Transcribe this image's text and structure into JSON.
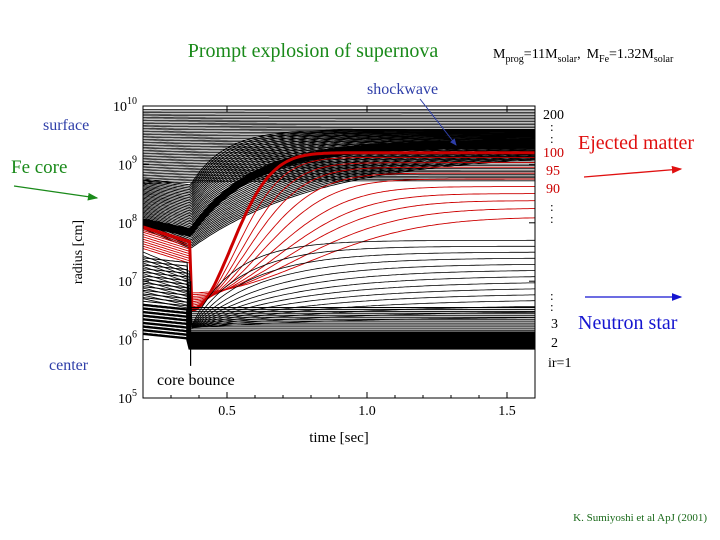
{
  "title": "Prompt explosion of supernova",
  "params": {
    "mprog_sym": "M",
    "mprog_sub": "prog",
    "mprog_val": "=11M",
    "mprog_unit": "solar",
    "sep": ",",
    "mfe_sym": "M",
    "mfe_sub": "Fe",
    "mfe_val": "=1.32M",
    "mfe_unit": "solar"
  },
  "citation": "K. Sumiyoshi et al ApJ (2001)",
  "labels": {
    "surface": "surface",
    "fe_core": "Fe core",
    "center": "center",
    "shockwave": "shockwave",
    "core_bounce": "core bounce",
    "ejected_matter": "Ejected matter",
    "neutron_star": "Neutron star"
  },
  "shell_labels": {
    "black": [
      "200",
      "3",
      "2",
      "ir=1"
    ],
    "red": [
      "100",
      "95",
      "90"
    ],
    "dots": ":"
  },
  "colors": {
    "title": "#1a8a1a",
    "left_label": "#2e3ea8",
    "arrow_green": "#1a8a1a",
    "shock": "#2e3ea8",
    "ejected": "#e01010",
    "ejected_shells": "#cc0000",
    "neutron": "#1515d0",
    "black": "#000000"
  },
  "chart_data": {
    "type": "line",
    "xlabel": "time [sec]",
    "ylabel": "radius [cm]",
    "xlim": [
      0.2,
      1.6
    ],
    "ylim_log10": [
      5,
      10
    ],
    "x_ticks": [
      "0.5",
      "1.0",
      "1.5"
    ],
    "x_tick_values": [
      0.5,
      1.0,
      1.5
    ],
    "y_tick_base": "10",
    "y_tick_exponents": [
      "5",
      "6",
      "7",
      "8",
      "9",
      "10"
    ],
    "bounce_time": 0.37,
    "series": [
      {
        "group": "ejected_boundary",
        "ir": 100,
        "initial_log10_radius": 7.93,
        "final_log10_radius": 9.2
      },
      {
        "group": "ejected_shell",
        "ir": 95,
        "initial_log10_radius": 7.85,
        "final_log10_radius": 9.0
      },
      {
        "group": "ejected_shell",
        "ir": 90,
        "initial_log10_radius": 7.75,
        "final_log10_radius": 8.75
      },
      {
        "group": "neutron_star_shell",
        "ir": 3,
        "initial_log10_radius": 6.5,
        "final_log10_radius": 5.95
      },
      {
        "group": "neutron_star_shell",
        "ir": 2,
        "initial_log10_radius": 6.3,
        "final_log10_radius": 5.9
      },
      {
        "group": "neutron_star_shell",
        "ir": 1,
        "initial_log10_radius": 6.1,
        "final_log10_radius": 5.85
      }
    ]
  }
}
